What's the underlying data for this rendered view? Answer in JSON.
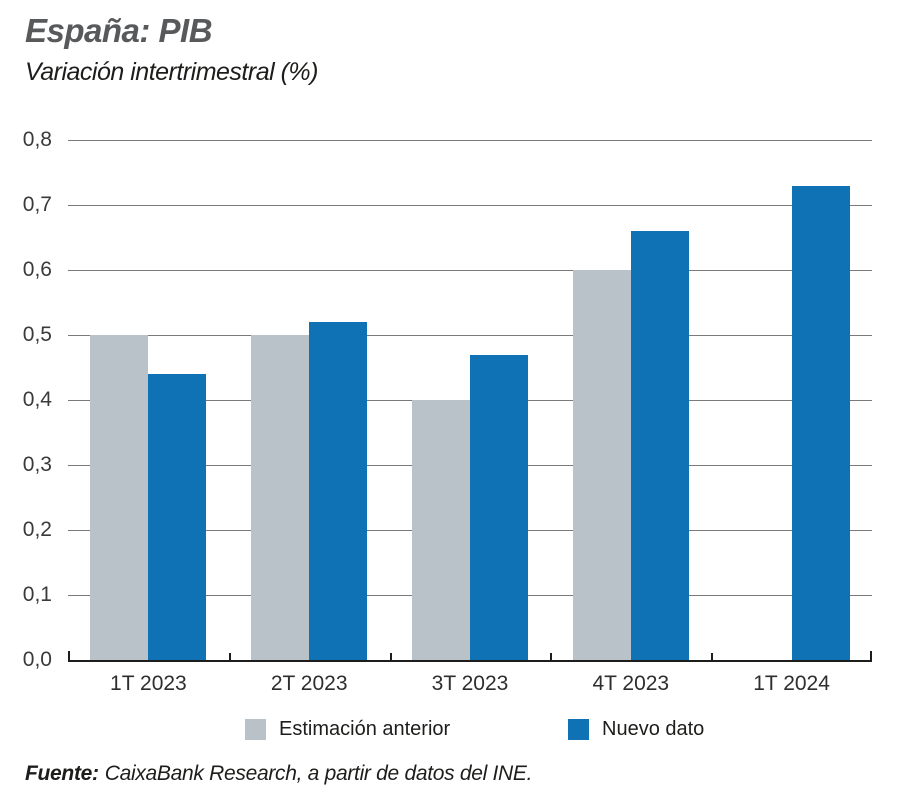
{
  "chart_data": {
    "type": "bar",
    "title": "España: PIB",
    "subtitle": "Variación intertrimestral (%)",
    "categories": [
      "1T 2023",
      "2T 2023",
      "3T 2023",
      "4T 2023",
      "1T 2024"
    ],
    "series": [
      {
        "name": "Estimación anterior",
        "color": "#b9c2c8",
        "values": [
          0.5,
          0.5,
          0.4,
          0.6,
          null
        ]
      },
      {
        "name": "Nuevo dato",
        "color": "#0e72b4",
        "values": [
          0.44,
          0.52,
          0.47,
          0.66,
          0.73
        ]
      }
    ],
    "xlabel": "",
    "ylabel": "",
    "ylim": [
      0,
      0.8
    ],
    "ytick_step": 0.1,
    "ytick_labels": [
      "0,0",
      "0,1",
      "0,2",
      "0,3",
      "0,4",
      "0,5",
      "0,6",
      "0,7",
      "0,8"
    ],
    "decimal_separator": ",",
    "grid": true,
    "legend_position": "bottom",
    "gridline_color": "#7a7a7a",
    "axis_color": "#1d1d1b"
  },
  "footer": {
    "source_label": "Fuente:",
    "source_text": "CaixaBank Research, a partir de datos del INE."
  }
}
